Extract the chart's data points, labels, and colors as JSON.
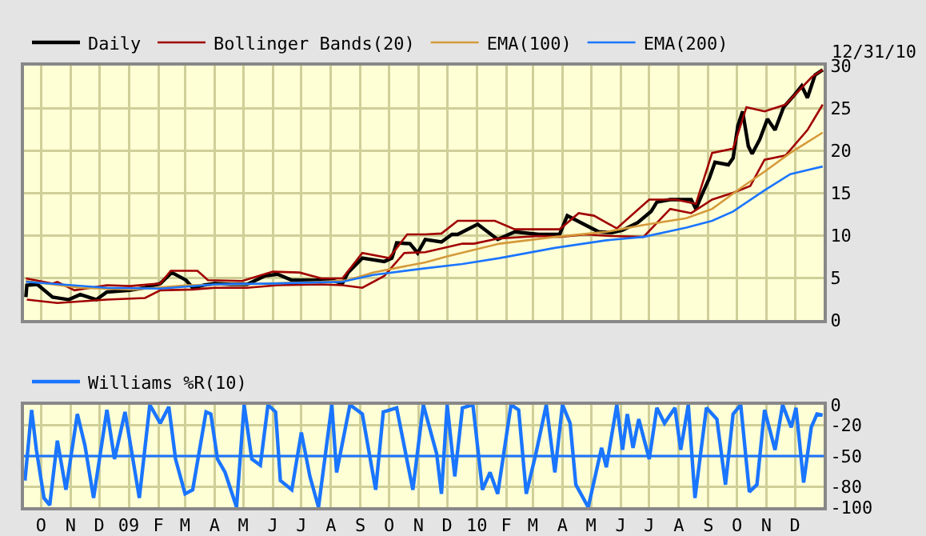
{
  "chart_data": [
    {
      "type": "line",
      "annotations": [
        "12/31/10"
      ],
      "legend": "top left",
      "grid": true,
      "tick_labels": "y",
      "xlim": [
        "2008-09-13",
        "2010-12-31"
      ],
      "xticks": [
        {
          "value": "2008-10-01",
          "label": null
        },
        {
          "value": "2008-11-01",
          "label": null
        },
        {
          "value": "2008-12-01",
          "label": null
        },
        {
          "value": "2009-01-01",
          "label": null
        },
        {
          "value": "2009-02-01",
          "label": null
        },
        {
          "value": "2009-03-01",
          "label": null
        },
        {
          "value": "2009-04-01",
          "label": null
        },
        {
          "value": "2009-05-01",
          "label": null
        },
        {
          "value": "2009-06-01",
          "label": null
        },
        {
          "value": "2009-07-01",
          "label": null
        },
        {
          "value": "2009-08-01",
          "label": null
        },
        {
          "value": "2009-09-01",
          "label": null
        },
        {
          "value": "2009-10-01",
          "label": null
        },
        {
          "value": "2009-11-01",
          "label": null
        },
        {
          "value": "2009-12-01",
          "label": null
        },
        {
          "value": "2010-01-01",
          "label": null
        },
        {
          "value": "2010-02-01",
          "label": null
        },
        {
          "value": "2010-03-01",
          "label": null
        },
        {
          "value": "2010-04-01",
          "label": null
        },
        {
          "value": "2010-05-01",
          "label": null
        },
        {
          "value": "2010-06-01",
          "label": null
        },
        {
          "value": "2010-07-01",
          "label": null
        },
        {
          "value": "2010-08-01",
          "label": null
        },
        {
          "value": "2010-09-01",
          "label": null
        },
        {
          "value": "2010-10-01",
          "label": null
        },
        {
          "value": "2010-11-01",
          "label": null
        },
        {
          "value": "2010-12-01",
          "label": null
        }
      ],
      "ylim": [
        0,
        30
      ],
      "yticks": [
        0,
        5,
        10,
        15,
        20,
        25,
        30
      ],
      "series": [
        {
          "name": "Daily",
          "color": "#000000",
          "x": [
            "2008-09-15",
            "2008-09-16",
            "2008-09-27",
            "2008-10-13",
            "2008-10-30",
            "2008-11-11",
            "2008-11-28",
            "2008-12-09",
            "2009-01-02",
            "2009-01-18",
            "2009-02-03",
            "2009-02-15",
            "2009-03-02",
            "2009-03-09",
            "2009-03-20",
            "2009-04-01",
            "2009-04-18",
            "2009-05-05",
            "2009-05-24",
            "2009-06-06",
            "2009-06-21",
            "2009-07-10",
            "2009-08-02",
            "2009-08-13",
            "2009-08-19",
            "2009-09-03",
            "2009-09-26",
            "2009-10-04",
            "2009-10-09",
            "2009-10-23",
            "2009-10-31",
            "2009-11-08",
            "2009-11-25",
            "2009-12-06",
            "2009-12-12",
            "2010-01-02",
            "2010-01-23",
            "2010-02-10",
            "2010-03-07",
            "2010-03-29",
            "2010-04-06",
            "2010-04-25",
            "2010-05-09",
            "2010-05-23",
            "2010-06-03",
            "2010-06-19",
            "2010-07-03",
            "2010-07-09",
            "2010-07-23",
            "2010-08-14",
            "2010-08-19",
            "2010-08-25",
            "2010-09-02",
            "2010-09-08",
            "2010-09-22",
            "2010-09-27",
            "2010-10-02",
            "2010-10-07",
            "2010-10-13",
            "2010-10-17",
            "2010-10-25",
            "2010-11-02",
            "2010-11-10",
            "2010-11-19",
            "2010-11-30",
            "2010-12-08",
            "2010-12-14",
            "2010-12-22",
            "2010-12-30"
          ],
          "values": [
            2.7,
            4.1,
            4.2,
            2.7,
            2.4,
            3.0,
            2.4,
            3.3,
            3.5,
            3.8,
            4.3,
            5.6,
            4.7,
            3.8,
            4.1,
            4.3,
            4.2,
            4.2,
            5.2,
            5.4,
            4.7,
            4.7,
            4.7,
            4.3,
            5.6,
            7.3,
            6.9,
            7.3,
            9.1,
            9.0,
            7.9,
            9.5,
            9.2,
            10.1,
            10.1,
            11.3,
            9.5,
            10.4,
            10.1,
            10.1,
            12.3,
            11.2,
            10.4,
            10.3,
            10.6,
            11.5,
            12.8,
            13.9,
            14.2,
            14.2,
            13.1,
            14.7,
            16.7,
            18.6,
            18.3,
            19.1,
            22.9,
            24.6,
            20.5,
            19.6,
            21.3,
            23.7,
            22.4,
            25.1,
            26.5,
            27.6,
            26.2,
            28.9,
            29.5
          ]
        },
        {
          "name": "Bollinger Bands(20)",
          "color": "#a00000",
          "x": [
            "2008-09-15",
            "2008-10-13",
            "2008-10-18",
            "2008-11-05",
            "2008-12-09",
            "2009-01-02",
            "2009-02-03",
            "2009-02-14",
            "2009-03-14",
            "2009-03-25",
            "2009-04-30",
            "2009-06-01",
            "2009-06-29",
            "2009-07-22",
            "2009-08-13",
            "2009-09-03",
            "2009-10-01",
            "2009-10-20",
            "2009-11-08",
            "2009-11-25",
            "2009-12-12",
            "2010-01-02",
            "2010-01-20",
            "2010-02-10",
            "2010-03-29",
            "2010-04-18",
            "2010-05-04",
            "2010-05-28",
            "2010-07-01",
            "2010-07-29",
            "2010-08-19",
            "2010-09-05",
            "2010-09-27",
            "2010-10-11",
            "2010-10-30",
            "2010-11-21",
            "2010-12-19",
            "2010-12-30"
          ],
          "values": [
            4.9,
            4.3,
            4.5,
            3.5,
            4.1,
            4.0,
            4.3,
            5.8,
            5.8,
            4.7,
            4.6,
            5.7,
            5.6,
            4.9,
            4.9,
            7.9,
            7.3,
            10.1,
            10.1,
            10.2,
            11.7,
            11.7,
            11.7,
            10.7,
            10.7,
            12.6,
            12.3,
            10.8,
            14.2,
            14.2,
            13.7,
            19.7,
            20.2,
            25.1,
            24.6,
            25.4,
            28.7,
            29.5
          ]
        },
        {
          "color": "#a00000",
          "x": [
            "2008-09-16",
            "2008-10-18",
            "2008-12-09",
            "2009-01-18",
            "2009-02-03",
            "2009-03-09",
            "2009-04-01",
            "2009-05-05",
            "2009-06-06",
            "2009-07-22",
            "2009-08-13",
            "2009-09-03",
            "2009-09-26",
            "2009-10-17",
            "2009-11-08",
            "2009-12-17",
            "2009-12-29",
            "2010-01-23",
            "2010-03-07",
            "2010-03-29",
            "2010-04-25",
            "2010-05-23",
            "2010-06-25",
            "2010-07-23",
            "2010-08-14",
            "2010-09-05",
            "2010-09-27",
            "2010-10-15",
            "2010-10-30",
            "2010-11-21",
            "2010-12-14",
            "2010-12-30"
          ],
          "values": [
            2.4,
            2.0,
            2.4,
            2.6,
            3.5,
            3.6,
            3.8,
            3.8,
            4.1,
            4.2,
            4.1,
            3.8,
            5.2,
            7.9,
            8.0,
            9.0,
            9.0,
            9.6,
            9.9,
            9.8,
            10.1,
            9.9,
            9.8,
            13.1,
            12.6,
            14.2,
            15.0,
            15.8,
            18.9,
            19.4,
            22.4,
            25.4
          ]
        },
        {
          "name": "EMA(100)",
          "color": "#d49a3a",
          "x": [
            "2008-09-15",
            "2008-11-11",
            "2009-01-06",
            "2009-03-04",
            "2009-04-30",
            "2009-07-22",
            "2009-08-19",
            "2009-09-14",
            "2009-11-08",
            "2009-12-01",
            "2010-01-25",
            "2010-03-24",
            "2010-05-17",
            "2010-06-25",
            "2010-08-09",
            "2010-09-05",
            "2010-10-08",
            "2010-10-30",
            "2010-11-26",
            "2010-12-30"
          ],
          "values": [
            4.6,
            3.8,
            3.6,
            4.1,
            4.2,
            4.5,
            4.7,
            5.6,
            6.8,
            7.5,
            9.0,
            9.8,
            10.4,
            11.2,
            12.0,
            13.1,
            15.8,
            17.5,
            19.7,
            22.1
          ]
        },
        {
          "name": "EMA(200)",
          "color": "#1a75ff",
          "x": [
            "2008-09-15",
            "2008-12-09",
            "2009-02-03",
            "2009-04-01",
            "2009-06-01",
            "2009-08-13",
            "2009-09-14",
            "2009-11-08",
            "2009-12-17",
            "2010-01-25",
            "2010-03-24",
            "2010-05-17",
            "2010-06-25",
            "2010-08-09",
            "2010-09-05",
            "2010-09-27",
            "2010-10-30",
            "2010-11-26",
            "2010-12-30"
          ],
          "values": [
            4.5,
            3.8,
            3.7,
            4.2,
            4.3,
            4.5,
            5.3,
            6.1,
            6.6,
            7.3,
            8.5,
            9.4,
            9.8,
            10.9,
            11.7,
            12.8,
            15.3,
            17.2,
            18.1
          ]
        }
      ]
    },
    {
      "type": "line",
      "legend": "top left",
      "grid": true,
      "xlim": [
        "2008-09-13",
        "2010-12-31"
      ],
      "xticks": [
        {
          "value": "2008-10-01",
          "label": "O"
        },
        {
          "value": "2008-11-01",
          "label": "N"
        },
        {
          "value": "2008-12-01",
          "label": "D"
        },
        {
          "value": "2009-01-01",
          "label": "09"
        },
        {
          "value": "2009-02-01",
          "label": "F"
        },
        {
          "value": "2009-03-01",
          "label": "M"
        },
        {
          "value": "2009-04-01",
          "label": "A"
        },
        {
          "value": "2009-05-01",
          "label": "M"
        },
        {
          "value": "2009-06-01",
          "label": "J"
        },
        {
          "value": "2009-07-01",
          "label": "J"
        },
        {
          "value": "2009-08-01",
          "label": "A"
        },
        {
          "value": "2009-09-01",
          "label": "S"
        },
        {
          "value": "2009-10-01",
          "label": "O"
        },
        {
          "value": "2009-11-01",
          "label": "N"
        },
        {
          "value": "2009-12-01",
          "label": "D"
        },
        {
          "value": "2010-01-01",
          "label": "10"
        },
        {
          "value": "2010-02-01",
          "label": "F"
        },
        {
          "value": "2010-03-01",
          "label": "M"
        },
        {
          "value": "2010-04-01",
          "label": "A"
        },
        {
          "value": "2010-05-01",
          "label": "M"
        },
        {
          "value": "2010-06-01",
          "label": "J"
        },
        {
          "value": "2010-07-01",
          "label": "J"
        },
        {
          "value": "2010-08-01",
          "label": "A"
        },
        {
          "value": "2010-09-01",
          "label": "S"
        },
        {
          "value": "2010-10-01",
          "label": "O"
        },
        {
          "value": "2010-11-01",
          "label": "N"
        },
        {
          "value": "2010-12-01",
          "label": "D"
        }
      ],
      "ylim": [
        -100,
        0
      ],
      "yticks": [
        0,
        -20,
        -50,
        -80,
        -100
      ],
      "ref_lines": [
        {
          "axis": "y",
          "value": -50,
          "color": "#1a75ff"
        }
      ],
      "series": [
        {
          "name": "Williams %R(10)",
          "color": "#1a75ff",
          "x": [
            "2008-09-14",
            "2008-09-21",
            "2008-09-26",
            "2008-10-04",
            "2008-10-10",
            "2008-10-18",
            "2008-10-27",
            "2008-11-08",
            "2008-11-16",
            "2008-11-25",
            "2008-12-09",
            "2008-12-17",
            "2008-12-28",
            "2009-01-12",
            "2009-01-23",
            "2009-02-03",
            "2009-02-12",
            "2009-02-19",
            "2009-03-01",
            "2009-03-09",
            "2009-03-23",
            "2009-03-28",
            "2009-04-04",
            "2009-04-12",
            "2009-04-24",
            "2009-05-02",
            "2009-05-10",
            "2009-05-19",
            "2009-05-27",
            "2009-06-04",
            "2009-06-09",
            "2009-06-21",
            "2009-07-01",
            "2009-07-10",
            "2009-07-19",
            "2009-08-02",
            "2009-08-07",
            "2009-08-21",
            "2009-09-03",
            "2009-09-17",
            "2009-09-25",
            "2009-10-09",
            "2009-10-26",
            "2009-11-06",
            "2009-11-20",
            "2009-11-25",
            "2009-12-01",
            "2009-12-09",
            "2009-12-17",
            "2009-12-28",
            "2010-01-07",
            "2010-01-15",
            "2010-01-23",
            "2010-02-06",
            "2010-02-14",
            "2010-02-22",
            "2010-03-04",
            "2010-03-15",
            "2010-03-24",
            "2010-04-01",
            "2010-04-09",
            "2010-04-15",
            "2010-04-28",
            "2010-05-12",
            "2010-05-17",
            "2010-05-28",
            "2010-06-03",
            "2010-06-08",
            "2010-06-14",
            "2010-06-20",
            "2010-07-01",
            "2010-07-09",
            "2010-07-17",
            "2010-07-28",
            "2010-08-03",
            "2010-08-11",
            "2010-08-18",
            "2010-08-30",
            "2010-09-10",
            "2010-09-19",
            "2010-09-27",
            "2010-10-05",
            "2010-10-14",
            "2010-10-22",
            "2010-10-30",
            "2010-11-10",
            "2010-11-18",
            "2010-11-27",
            "2010-12-02",
            "2010-12-10",
            "2010-12-18",
            "2010-12-24",
            "2010-12-30"
          ],
          "values": [
            -74,
            -5,
            -44,
            -91,
            -98,
            -35,
            -83,
            -9,
            -40,
            -91,
            -5,
            -53,
            -7,
            -91,
            0,
            -18,
            -2,
            -53,
            -87,
            -83,
            -7,
            -9,
            -53,
            -66,
            -100,
            0,
            -53,
            -59,
            0,
            -7,
            -74,
            -83,
            -27,
            -70,
            -100,
            0,
            -66,
            0,
            -9,
            -83,
            -7,
            -3,
            -83,
            0,
            -48,
            -87,
            0,
            -70,
            -3,
            0,
            -83,
            -66,
            -87,
            0,
            -5,
            -87,
            -48,
            0,
            -66,
            0,
            -18,
            -78,
            -100,
            -42,
            -61,
            0,
            -44,
            -9,
            -42,
            -14,
            -53,
            -3,
            -18,
            -3,
            -44,
            0,
            -91,
            -3,
            -14,
            -78,
            -9,
            0,
            -85,
            -78,
            -5,
            -44,
            0,
            -22,
            -3,
            -76,
            -22,
            -9,
            -10
          ]
        }
      ]
    }
  ]
}
